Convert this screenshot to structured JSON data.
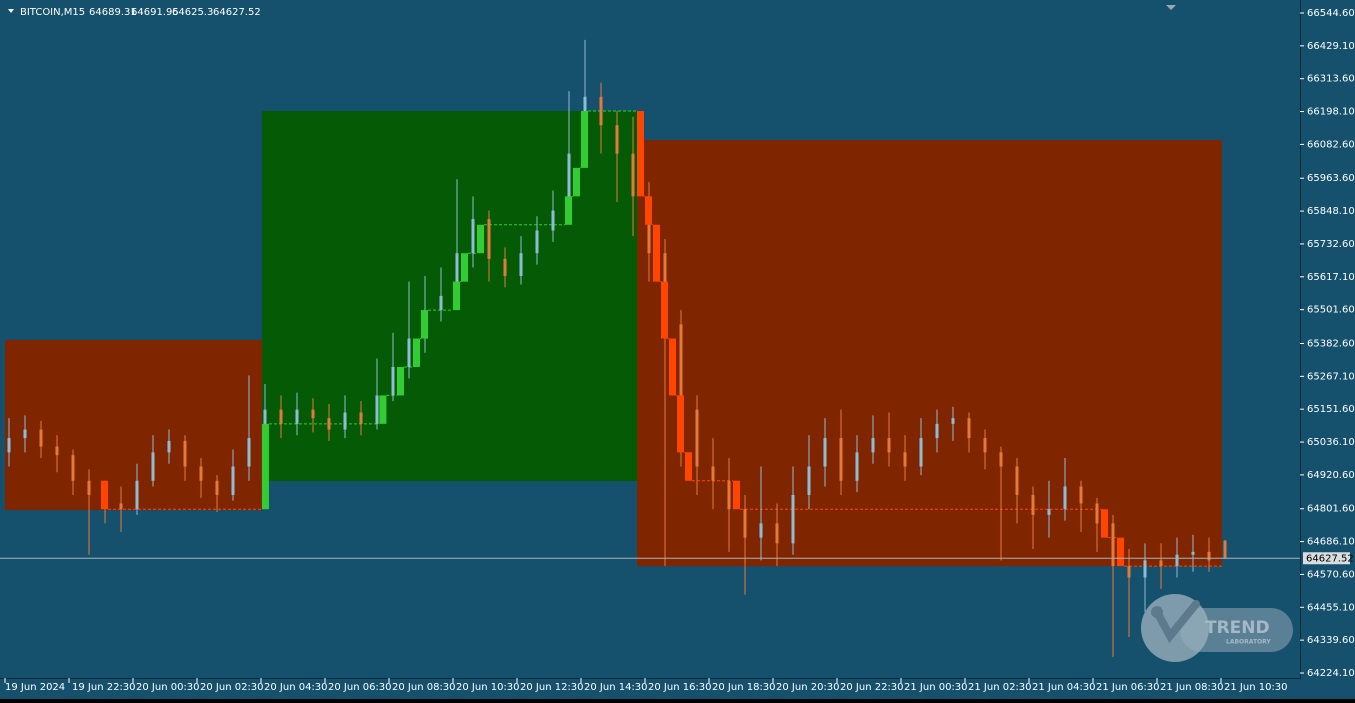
{
  "chart_data": {
    "type": "candlestick",
    "title": "BITCOIN,M15",
    "xlim": [
      -0.3125,
      80.9375
    ],
    "ylim": [
      64206.5,
      66590.3
    ],
    "xticks": [
      {
        "value": 0,
        "label": "19 Jun 2024"
      },
      {
        "value": 4,
        "label": "19 Jun 22:30"
      },
      {
        "value": 8,
        "label": "20 Jun 00:30"
      },
      {
        "value": 12,
        "label": "20 Jun 02:30"
      },
      {
        "value": 16,
        "label": "20 Jun 04:30"
      },
      {
        "value": 20,
        "label": "20 Jun 06:30"
      },
      {
        "value": 24,
        "label": "20 Jun 08:30"
      },
      {
        "value": 28,
        "label": "20 Jun 10:30"
      },
      {
        "value": 32,
        "label": "20 Jun 12:30"
      },
      {
        "value": 36,
        "label": "20 Jun 14:30"
      },
      {
        "value": 40,
        "label": "20 Jun 16:30"
      },
      {
        "value": 44,
        "label": "20 Jun 18:30"
      },
      {
        "value": 48,
        "label": "20 Jun 20:30"
      },
      {
        "value": 52,
        "label": "20 Jun 22:30"
      },
      {
        "value": 56,
        "label": "21 Jun 00:30"
      },
      {
        "value": 60,
        "label": "21 Jun 02:30"
      },
      {
        "value": 64,
        "label": "21 Jun 04:30"
      },
      {
        "value": 68,
        "label": "21 Jun 06:30"
      },
      {
        "value": 72,
        "label": "21 Jun 08:30"
      },
      {
        "value": 76,
        "label": "21 Jun 10:30"
      }
    ],
    "yticks": [
      {
        "value": 66544.6,
        "label": "66544.60"
      },
      {
        "value": 66429.1,
        "label": "66429.10"
      },
      {
        "value": 66313.6,
        "label": "66313.60"
      },
      {
        "value": 66198.1,
        "label": "66198.10"
      },
      {
        "value": 66082.6,
        "label": "66082.60"
      },
      {
        "value": 65963.6,
        "label": "65963.60"
      },
      {
        "value": 65848.1,
        "label": "65848.10"
      },
      {
        "value": 65732.6,
        "label": "65732.60"
      },
      {
        "value": 65617.1,
        "label": "65617.10"
      },
      {
        "value": 65501.6,
        "label": "65501.60"
      },
      {
        "value": 65382.6,
        "label": "65382.60"
      },
      {
        "value": 65267.1,
        "label": "65267.10"
      },
      {
        "value": 65151.6,
        "label": "65151.60"
      },
      {
        "value": 65036.1,
        "label": "65036.10"
      },
      {
        "value": 64920.6,
        "label": "64920.60"
      },
      {
        "value": 64801.6,
        "label": "64801.60"
      },
      {
        "value": 64686.1,
        "label": "64686.10"
      },
      {
        "value": 64570.6,
        "label": "64570.60"
      },
      {
        "value": 64455.1,
        "label": "64455.10"
      },
      {
        "value": 64339.6,
        "label": "64339.60"
      },
      {
        "value": 64224.1,
        "label": "64224.10"
      }
    ],
    "up_color": "#8fbcd4",
    "down_color": "#e47a3a",
    "open": [
      65000,
      65050,
      65080,
      65020,
      64990,
      64900,
      64850,
      64820,
      64800,
      64900,
      65000,
      65040,
      64950,
      64900,
      64850,
      64950,
      65050,
      65150,
      65100,
      65150,
      65120,
      65080,
      65140,
      65100,
      65200,
      65300,
      65400,
      65500,
      65550,
      65700,
      65820,
      65680,
      65620,
      65700,
      65780,
      65850,
      66050,
      66250,
      66150,
      66050,
      65900,
      65700,
      65450,
      65150,
      64950,
      64900,
      64800,
      64700,
      64750,
      64680,
      64850,
      64950,
      65050,
      64900,
      65000,
      65050,
      65000,
      64950,
      65050,
      65100,
      65120,
      65050,
      65000,
      64950,
      64850,
      64780,
      64800,
      64880,
      64820,
      64750,
      64600,
      64560,
      64620,
      64600,
      64640,
      64650,
      64689.31
    ],
    "high": [
      65120,
      65130,
      65110,
      65060,
      65010,
      64940,
      64900,
      64880,
      64960,
      65060,
      65080,
      65060,
      64980,
      64920,
      65010,
      65270,
      65240,
      65200,
      65210,
      65190,
      65170,
      65200,
      65180,
      65330,
      65420,
      65600,
      65620,
      65650,
      65960,
      65900,
      65850,
      65720,
      65760,
      65830,
      65920,
      66270,
      66450,
      66300,
      66200,
      66180,
      65950,
      65750,
      65500,
      65200,
      65050,
      64980,
      64850,
      64950,
      64820,
      64950,
      65060,
      65120,
      65150,
      65060,
      65130,
      65140,
      65060,
      65120,
      65150,
      65160,
      65140,
      65080,
      65020,
      64980,
      64880,
      64900,
      64980,
      64900,
      64840,
      64780,
      64660,
      64680,
      64680,
      64700,
      64710,
      64700,
      64691.95
    ],
    "low": [
      64950,
      65000,
      64980,
      64930,
      64850,
      64640,
      64750,
      64720,
      64780,
      64880,
      64960,
      64900,
      64840,
      64790,
      64830,
      64900,
      64950,
      65050,
      65060,
      65070,
      65040,
      65050,
      65060,
      65080,
      65180,
      65260,
      65350,
      65460,
      65500,
      65650,
      65600,
      65580,
      65590,
      65660,
      65740,
      65820,
      66000,
      66050,
      65880,
      65760,
      65600,
      64600,
      64950,
      64850,
      64800,
      64650,
      64500,
      64620,
      64600,
      64640,
      64800,
      64880,
      64850,
      64860,
      64960,
      64950,
      64900,
      64920,
      65000,
      65040,
      65000,
      64940,
      64620,
      64750,
      64660,
      64700,
      64760,
      64720,
      64650,
      64280,
      64350,
      64440,
      64520,
      64560,
      64580,
      64580,
      64625.3
    ],
    "close": [
      65050,
      65080,
      65020,
      64990,
      64900,
      64850,
      64820,
      64800,
      64900,
      65000,
      65040,
      64950,
      64900,
      64850,
      64950,
      65050,
      65150,
      65100,
      65150,
      65120,
      65080,
      65140,
      65100,
      65200,
      65300,
      65400,
      65500,
      65550,
      65700,
      65820,
      65680,
      65620,
      65700,
      65780,
      65850,
      66050,
      66250,
      66150,
      66050,
      65900,
      65700,
      65450,
      65150,
      64950,
      64900,
      64800,
      64700,
      64750,
      64680,
      64850,
      64950,
      65050,
      64900,
      65000,
      65050,
      65000,
      64950,
      65050,
      65100,
      65120,
      65050,
      65000,
      64950,
      64850,
      64780,
      64800,
      64880,
      64820,
      64750,
      64600,
      64560,
      64620,
      64600,
      64640,
      64650,
      64620,
      64627.52
    ],
    "zones": [
      {
        "x": [
          0,
          16.06
        ],
        "low": 64797,
        "high": 65395,
        "color": "#7f2600"
      },
      {
        "x": [
          16.06,
          39.5
        ],
        "low": 64899,
        "high": 66200,
        "color": "#055a05"
      },
      {
        "x": [
          39.5,
          76.06
        ],
        "low": 64600,
        "high": 66098,
        "color": "#7f2600"
      }
    ],
    "bricks": [
      {
        "x": 6,
        "open": 64900,
        "close": 64800,
        "color": "#ff4500"
      },
      {
        "x": 16.06,
        "open": 64800,
        "close": 65100,
        "color": "#32cd32"
      },
      {
        "x": 23.4,
        "open": 65100,
        "close": 65200,
        "color": "#32cd32"
      },
      {
        "x": 24.5,
        "open": 65200,
        "close": 65300,
        "color": "#32cd32"
      },
      {
        "x": 25.5,
        "open": 65300,
        "close": 65400,
        "color": "#32cd32"
      },
      {
        "x": 26,
        "open": 65400,
        "close": 65500,
        "color": "#32cd32"
      },
      {
        "x": 28,
        "open": 65500,
        "close": 65600,
        "color": "#32cd32"
      },
      {
        "x": 28.5,
        "open": 65600,
        "close": 65700,
        "color": "#32cd32"
      },
      {
        "x": 29.5,
        "open": 65700,
        "close": 65800,
        "color": "#32cd32"
      },
      {
        "x": 35,
        "open": 65800,
        "close": 65900,
        "color": "#32cd32"
      },
      {
        "x": 35.5,
        "open": 65900,
        "close": 66000,
        "color": "#32cd32"
      },
      {
        "x": 36,
        "open": 66000,
        "close": 66200,
        "color": "#32cd32"
      },
      {
        "x": 39.5,
        "open": 66200,
        "close": 65900,
        "color": "#ff4500"
      },
      {
        "x": 40,
        "open": 65900,
        "close": 65800,
        "color": "#ff4500"
      },
      {
        "x": 40.5,
        "open": 65800,
        "close": 65600,
        "color": "#ff4500"
      },
      {
        "x": 41,
        "open": 65600,
        "close": 65400,
        "color": "#ff4500"
      },
      {
        "x": 41.5,
        "open": 65400,
        "close": 65200,
        "color": "#ff4500"
      },
      {
        "x": 42,
        "open": 65200,
        "close": 65000,
        "color": "#ff4500"
      },
      {
        "x": 42.5,
        "open": 65000,
        "close": 64900,
        "color": "#ff4500"
      },
      {
        "x": 45.5,
        "open": 64900,
        "close": 64800,
        "color": "#ff4500"
      },
      {
        "x": 68.5,
        "open": 64800,
        "close": 64700,
        "color": "#ff4500"
      },
      {
        "x": 69.5,
        "open": 64700,
        "close": 64600,
        "color": "#ff4500"
      }
    ],
    "watermark": [
      "TREND",
      "LABORATORY"
    ]
  }
}
